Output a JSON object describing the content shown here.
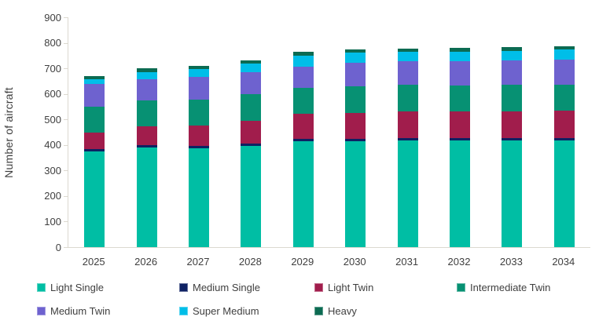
{
  "chart_data": {
    "type": "bar",
    "stacked": true,
    "ylabel": "Number of aircraft",
    "ylim": [
      0,
      900
    ],
    "ytick_interval": 100,
    "yticks": [
      0,
      100,
      200,
      300,
      400,
      500,
      600,
      700,
      800,
      900
    ],
    "grid": false,
    "legend_position": "bottom",
    "axis_color": "#dcd9d0",
    "text_color": "#3f3f3f",
    "categories": [
      "2025",
      "2026",
      "2027",
      "2028",
      "2029",
      "2030",
      "2031",
      "2032",
      "2033",
      "2034"
    ],
    "series": [
      {
        "name": "Light Single",
        "color": "#00BEA4",
        "values": [
          375,
          390,
          388,
          397,
          415,
          415,
          418,
          418,
          418,
          418
        ]
      },
      {
        "name": "Medium Single",
        "color": "#0E2163",
        "values": [
          8,
          8,
          8,
          8,
          10,
          10,
          10,
          10,
          10,
          10
        ]
      },
      {
        "name": "Light Twin",
        "color": "#A11D4C",
        "values": [
          65,
          74,
          80,
          90,
          98,
          100,
          104,
          102,
          104,
          106
        ]
      },
      {
        "name": "Intermediate Twin",
        "color": "#079173",
        "values": [
          102,
          104,
          101,
          105,
          100,
          105,
          103,
          103,
          103,
          103
        ]
      },
      {
        "name": "Medium Twin",
        "color": "#6E62CF",
        "values": [
          90,
          82,
          89,
          85,
          85,
          92,
          93,
          95,
          95,
          97
        ]
      },
      {
        "name": "Super Medium",
        "color": "#00BEE8",
        "values": [
          18,
          28,
          32,
          35,
          42,
          40,
          37,
          37,
          39,
          41
        ]
      },
      {
        "name": "Heavy",
        "color": "#0C6B52",
        "values": [
          13,
          14,
          12,
          12,
          15,
          13,
          13,
          15,
          14,
          13
        ]
      }
    ],
    "totals": [
      671,
      700,
      710,
      732,
      765,
      775,
      778,
      780,
      783,
      788
    ]
  }
}
